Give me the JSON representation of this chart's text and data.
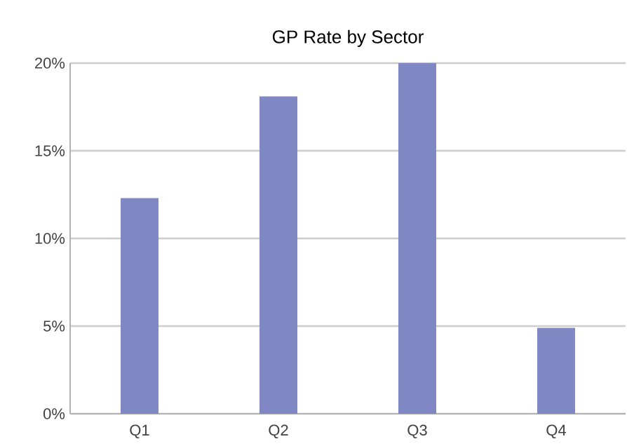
{
  "chart_data": {
    "type": "bar",
    "title": "GP Rate by Sector",
    "categories": [
      "Q1",
      "Q2",
      "Q3",
      "Q4"
    ],
    "values": [
      12.3,
      18.1,
      20.0,
      4.9
    ],
    "color": "#8088c4",
    "ylim": [
      0,
      20
    ],
    "yticks": [
      {
        "value": 0,
        "label": "0%"
      },
      {
        "value": 5,
        "label": "5%"
      },
      {
        "value": 10,
        "label": "10%"
      },
      {
        "value": 15,
        "label": "15%"
      },
      {
        "value": 20,
        "label": "20%"
      }
    ],
    "grid": "y"
  }
}
